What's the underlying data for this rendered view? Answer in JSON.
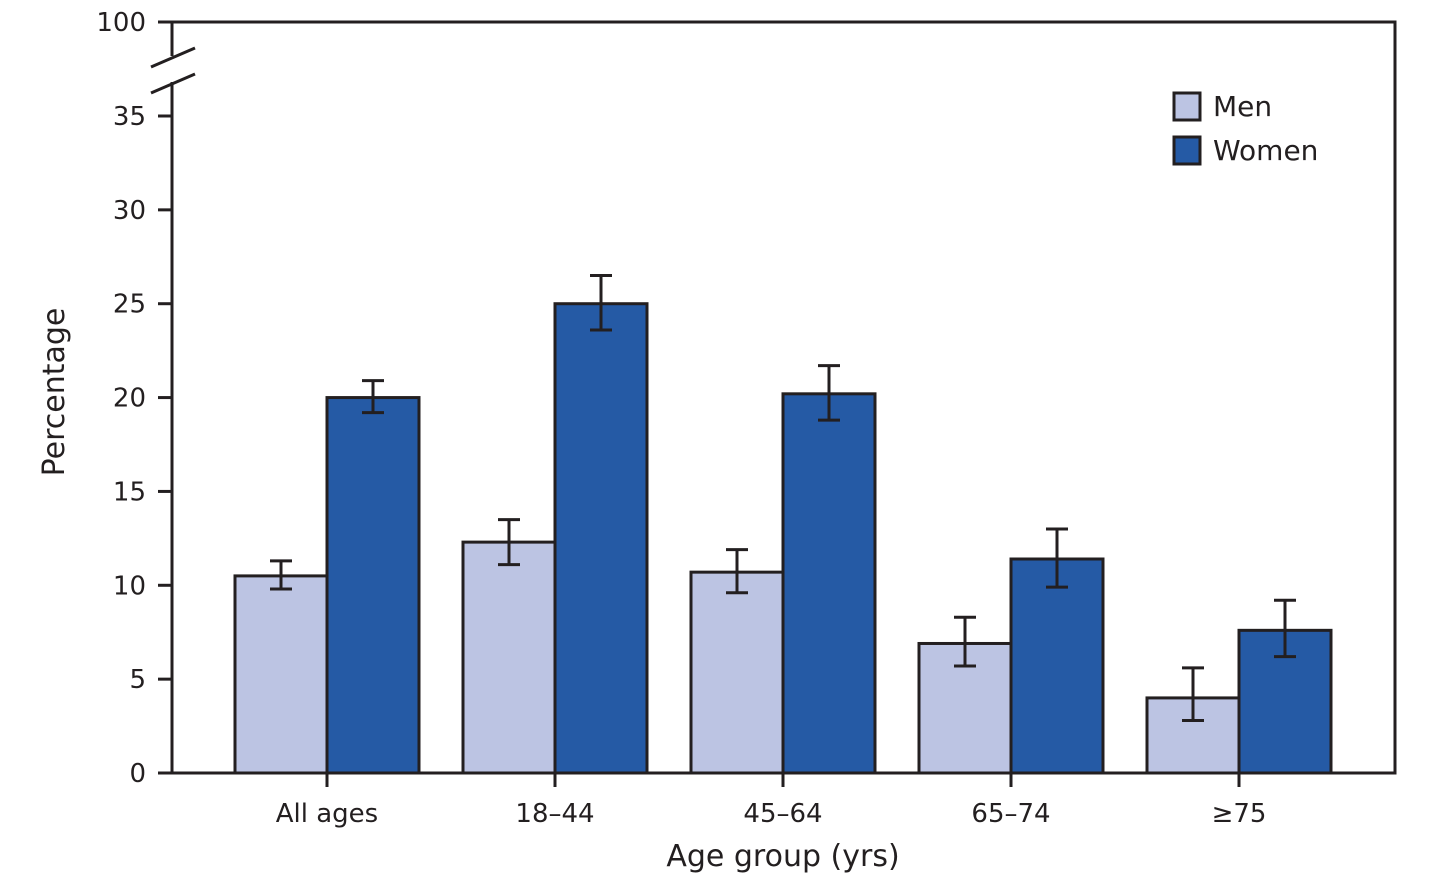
{
  "chart_data": {
    "type": "bar",
    "title": "",
    "xlabel": "Age group (yrs)",
    "ylabel": "Percentage",
    "categories": [
      "All ages",
      "18–44",
      "45–64",
      "65–74",
      "≥75"
    ],
    "series": [
      {
        "name": "Men",
        "color": "#bcc4e3",
        "values": [
          10.5,
          12.3,
          10.7,
          6.9,
          4.0
        ],
        "ci_low": [
          9.8,
          11.1,
          9.6,
          5.7,
          2.8
        ],
        "ci_high": [
          11.3,
          13.5,
          11.9,
          8.3,
          5.6
        ]
      },
      {
        "name": "Women",
        "color": "#255aa5",
        "values": [
          20.0,
          25.0,
          20.2,
          11.4,
          7.6
        ],
        "ci_low": [
          19.2,
          23.6,
          18.8,
          9.9,
          6.2
        ],
        "ci_high": [
          20.9,
          26.5,
          21.7,
          13.0,
          9.2
        ]
      }
    ],
    "ylim": [
      0,
      35
    ],
    "yticks": [
      0,
      5,
      10,
      15,
      20,
      25,
      30,
      35
    ],
    "y_axis_break": {
      "top_label": "100"
    },
    "grid": false,
    "legend_position": "top-right",
    "error_bars": true
  }
}
